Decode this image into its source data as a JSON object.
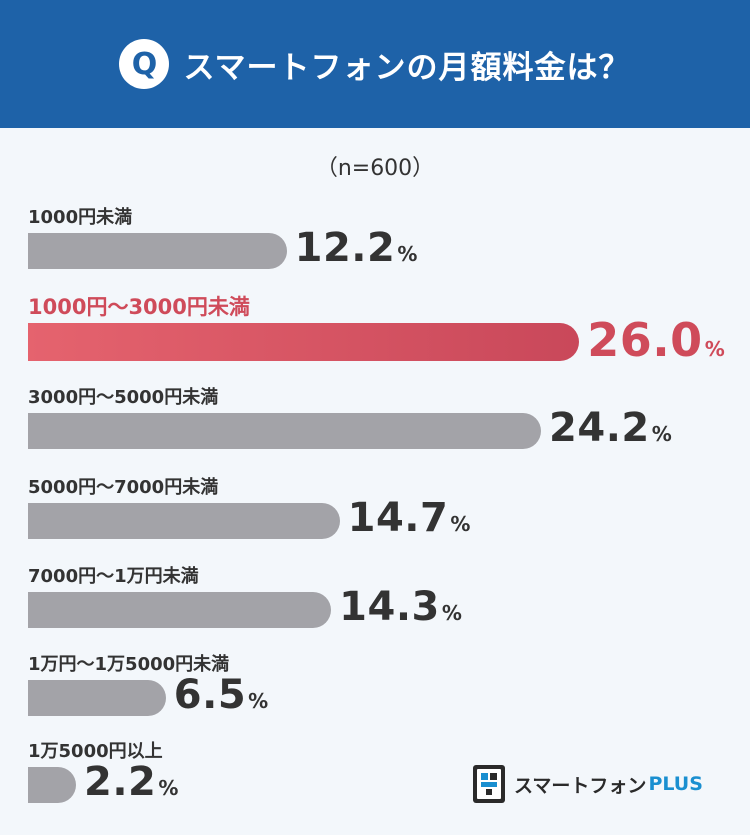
{
  "header": {
    "badge": "Q",
    "title": "スマートフォンの月額料金は？"
  },
  "sample_note": "（n=600）",
  "chart_data": {
    "type": "bar",
    "orientation": "horizontal",
    "categories": [
      "1000円未満",
      "1000円～3000円未満",
      "3000円～5000円未満",
      "5000円～7000円未満",
      "7000円～1万円未満",
      "1万円～1万5000円未満",
      "1万5000円以上"
    ],
    "values": [
      12.2,
      26.0,
      24.2,
      14.7,
      14.3,
      6.5,
      2.2
    ],
    "value_labels": [
      "12.2",
      "26.0",
      "24.2",
      "14.7",
      "14.3",
      "6.5",
      "2.2"
    ],
    "unit": "%",
    "highlight_index": 1,
    "colors": {
      "bar": "#a3a3a8",
      "highlight": "#cf4b5a",
      "header": "#1e62a8"
    },
    "title": "スマートフォンの月額料金は？"
  },
  "logo": {
    "icon": "smartphone-plus-logo-icon",
    "text_main": "スマートフォン",
    "text_accent": "PLUS"
  }
}
